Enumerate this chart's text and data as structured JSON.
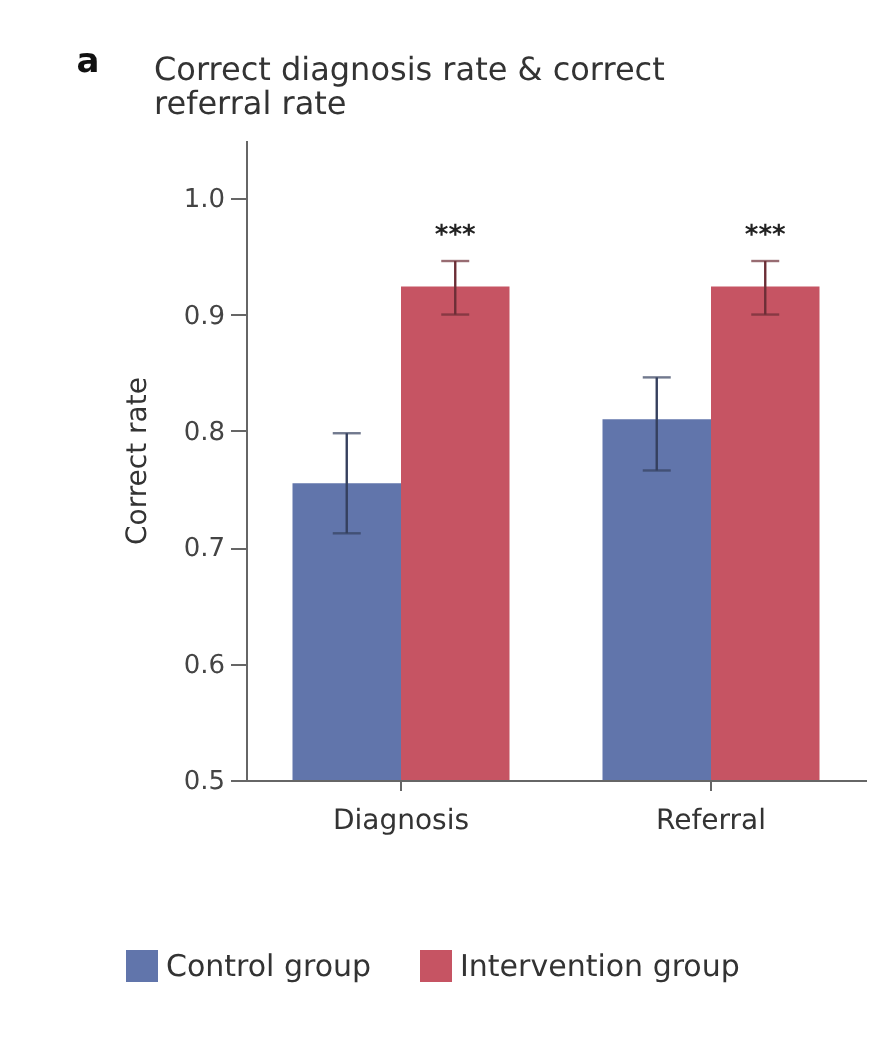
{
  "chart_data": {
    "type": "bar",
    "title": "Correct diagnosis rate & correct referral rate",
    "ylabel": "Correct rate",
    "categories": [
      "Diagnosis",
      "Referral"
    ],
    "series": [
      {
        "name": "Control group",
        "color": "#6175ab",
        "values": [
          0.755,
          0.81
        ],
        "errors": [
          [
            0.712,
            0.798
          ],
          [
            0.766,
            0.846
          ]
        ]
      },
      {
        "name": "Intervention group",
        "color": "#c65463",
        "values": [
          0.924,
          0.924
        ],
        "errors": [
          [
            0.9,
            0.946
          ],
          [
            0.9,
            0.946
          ]
        ]
      }
    ],
    "ylim": [
      0.5,
      1.05
    ],
    "yticks": [
      0.5,
      0.6,
      0.7,
      0.8,
      0.9,
      {
        "value": 1.0,
        "label": "1.0"
      }
    ],
    "legend": "bottom",
    "annotations": [
      "a",
      {
        "text": "***",
        "x": "Diagnosis",
        "y": 0.924
      },
      {
        "text": "***",
        "x": "Referral",
        "y": 0.924
      }
    ]
  }
}
